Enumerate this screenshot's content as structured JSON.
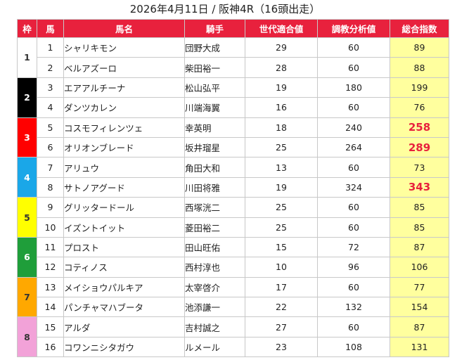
{
  "title": "2026年4月11日 / 阪神4R（16頭出走）",
  "headers": [
    "枠",
    "馬",
    "馬名",
    "騎手",
    "世代適合値",
    "調教分析値",
    "総合指数"
  ],
  "frames": [
    {
      "label": "1",
      "color": "#ffffff",
      "text_color": "#333333",
      "rows": 2
    },
    {
      "label": "2",
      "color": "#000000",
      "text_color": "#ffffff",
      "rows": 2
    },
    {
      "label": "3",
      "color": "#ff0000",
      "text_color": "#ffffff",
      "rows": 2
    },
    {
      "label": "4",
      "color": "#1aa7e8",
      "text_color": "#ffffff",
      "rows": 2
    },
    {
      "label": "5",
      "color": "#ffff00",
      "text_color": "#333333",
      "rows": 2
    },
    {
      "label": "6",
      "color": "#1f9e3a",
      "text_color": "#ffffff",
      "rows": 2
    },
    {
      "label": "7",
      "color": "#ffa800",
      "text_color": "#333333",
      "rows": 2
    },
    {
      "label": "8",
      "color": "#f2a2d8",
      "text_color": "#333333",
      "rows": 2
    }
  ],
  "horses": [
    {
      "num": "1",
      "name": "シャリキモン",
      "jockey": "団野大成",
      "generation": "29",
      "training": "60",
      "total": "89",
      "highlight": false
    },
    {
      "num": "2",
      "name": "ベルアズーロ",
      "jockey": "柴田裕一",
      "generation": "28",
      "training": "60",
      "total": "88",
      "highlight": false
    },
    {
      "num": "3",
      "name": "エアアルチーナ",
      "jockey": "松山弘平",
      "generation": "19",
      "training": "180",
      "total": "199",
      "highlight": false
    },
    {
      "num": "4",
      "name": "ダンツカレン",
      "jockey": "川端海翼",
      "generation": "16",
      "training": "60",
      "total": "76",
      "highlight": false
    },
    {
      "num": "5",
      "name": "コスモフィレンツェ",
      "jockey": "幸英明",
      "generation": "18",
      "training": "240",
      "total": "258",
      "highlight": true
    },
    {
      "num": "6",
      "name": "オリオンブレード",
      "jockey": "坂井瑠星",
      "generation": "25",
      "training": "264",
      "total": "289",
      "highlight": true
    },
    {
      "num": "7",
      "name": "アリュウ",
      "jockey": "角田大和",
      "generation": "13",
      "training": "60",
      "total": "73",
      "highlight": false
    },
    {
      "num": "8",
      "name": "サトノアグード",
      "jockey": "川田将雅",
      "generation": "19",
      "training": "324",
      "total": "343",
      "highlight": true
    },
    {
      "num": "9",
      "name": "グリッタードール",
      "jockey": "西塚洸二",
      "generation": "25",
      "training": "60",
      "total": "85",
      "highlight": false
    },
    {
      "num": "10",
      "name": "イズントイット",
      "jockey": "菱田裕二",
      "generation": "25",
      "training": "60",
      "total": "85",
      "highlight": false
    },
    {
      "num": "11",
      "name": "プロスト",
      "jockey": "田山旺佑",
      "generation": "15",
      "training": "72",
      "total": "87",
      "highlight": false
    },
    {
      "num": "12",
      "name": "コティノス",
      "jockey": "西村淳也",
      "generation": "10",
      "training": "96",
      "total": "106",
      "highlight": false
    },
    {
      "num": "13",
      "name": "メイショウパルキア",
      "jockey": "太宰啓介",
      "generation": "17",
      "training": "60",
      "total": "77",
      "highlight": false
    },
    {
      "num": "14",
      "name": "パンチャマハブータ",
      "jockey": "池添謙一",
      "generation": "22",
      "training": "132",
      "total": "154",
      "highlight": false
    },
    {
      "num": "15",
      "name": "アルダ",
      "jockey": "吉村誠之",
      "generation": "27",
      "training": "60",
      "total": "87",
      "highlight": false
    },
    {
      "num": "16",
      "name": "コワンニシタガウ",
      "jockey": "ルメール",
      "generation": "23",
      "training": "108",
      "total": "131",
      "highlight": false
    }
  ]
}
